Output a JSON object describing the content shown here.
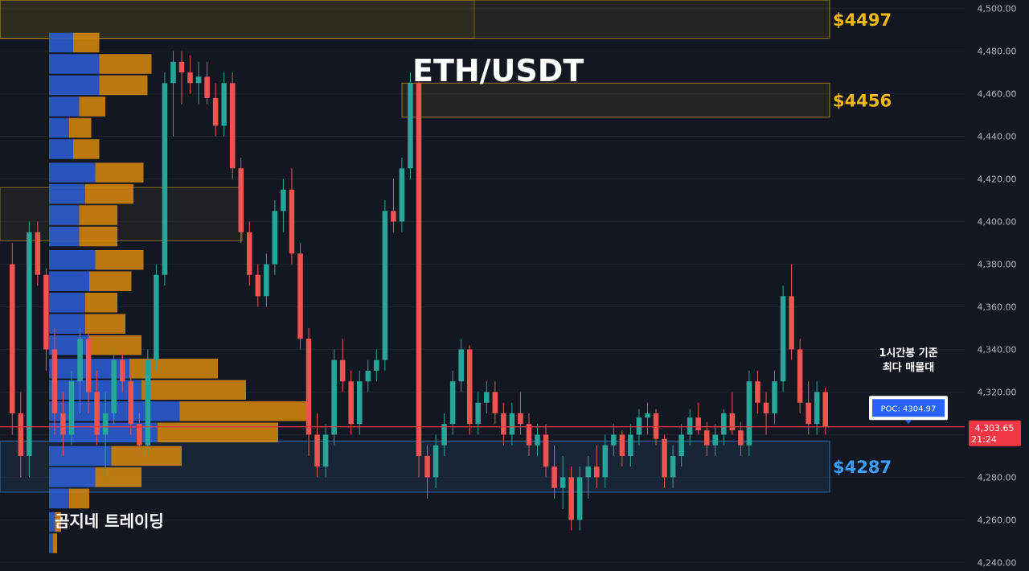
{
  "chart_data": {
    "type": "candlestick",
    "title": "ETH/USDT",
    "watermark": "곰지네 트레이딩",
    "ylim": [
      4236,
      4504
    ],
    "y_ticks": [
      4500,
      4480,
      4460,
      4440,
      4420,
      4400,
      4380,
      4360,
      4340,
      4320,
      4300,
      4280,
      4260,
      4240
    ],
    "y_tick_labels": [
      "4,500.00",
      "4,480.00",
      "4,460.00",
      "4,440.00",
      "4,420.00",
      "4,400.00",
      "4,380.00",
      "4,360.00",
      "4,340.00",
      "4,320.00",
      "4,300.00",
      "4,280.00",
      "4,260.00",
      "4,240.00"
    ],
    "current_price": {
      "value": 4303.65,
      "label": "4,303.65",
      "countdown": "21:24"
    },
    "poc": {
      "value": 4304.97,
      "label": "POC: 4304.97"
    },
    "annotation": {
      "line1": "1시간봉 기준",
      "line2": "최다 매물대"
    },
    "zones": [
      {
        "label": "$4497",
        "top": 4504,
        "bottom": 4486,
        "color": "#f0b90b"
      },
      {
        "label": "$4456",
        "top": 4465,
        "bottom": 4449,
        "color": "#f0b90b"
      },
      {
        "label": "$4287",
        "top": 4297,
        "bottom": 4273,
        "color": "#3aa0ff"
      }
    ],
    "volume_profile": {
      "rows": [
        {
          "price": 4484,
          "up": 12,
          "down": 13
        },
        {
          "price": 4474,
          "up": 25,
          "down": 26
        },
        {
          "price": 4464,
          "up": 25,
          "down": 24
        },
        {
          "price": 4454,
          "up": 15,
          "down": 13
        },
        {
          "price": 4444,
          "up": 10,
          "down": 11
        },
        {
          "price": 4434,
          "up": 12,
          "down": 13
        },
        {
          "price": 4423,
          "up": 23,
          "down": 24
        },
        {
          "price": 4413,
          "up": 18,
          "down": 24
        },
        {
          "price": 4403,
          "up": 15,
          "down": 19
        },
        {
          "price": 4393,
          "up": 15,
          "down": 19
        },
        {
          "price": 4382,
          "up": 23,
          "down": 24
        },
        {
          "price": 4372,
          "up": 20,
          "down": 21
        },
        {
          "price": 4362,
          "up": 18,
          "down": 16
        },
        {
          "price": 4352,
          "up": 18,
          "down": 20
        },
        {
          "price": 4342,
          "up": 20,
          "down": 26
        },
        {
          "price": 4331,
          "up": 40,
          "down": 44
        },
        {
          "price": 4321,
          "up": 46,
          "down": 52
        },
        {
          "price": 4311,
          "up": 65,
          "down": 64
        },
        {
          "price": 4301,
          "up": 54,
          "down": 60
        },
        {
          "price": 4290,
          "up": 31,
          "down": 35
        },
        {
          "price": 4280,
          "up": 23,
          "down": 23
        },
        {
          "price": 4270,
          "up": 10,
          "down": 10
        },
        {
          "price": 4259,
          "up": 3,
          "down": 3
        },
        {
          "price": 4249,
          "up": 2,
          "down": 2
        }
      ]
    },
    "candles": [
      [
        4380,
        4390,
        4300,
        4310
      ],
      [
        4310,
        4320,
        4280,
        4290
      ],
      [
        4290,
        4400,
        4280,
        4395
      ],
      [
        4395,
        4400,
        4370,
        4375
      ],
      [
        4375,
        4378,
        4330,
        4340
      ],
      [
        4340,
        4350,
        4300,
        4310
      ],
      [
        4310,
        4320,
        4290,
        4300
      ],
      [
        4300,
        4330,
        4295,
        4325
      ],
      [
        4325,
        4350,
        4310,
        4345
      ],
      [
        4345,
        4348,
        4310,
        4320
      ],
      [
        4320,
        4330,
        4295,
        4300
      ],
      [
        4300,
        4320,
        4280,
        4310
      ],
      [
        4310,
        4340,
        4305,
        4335
      ],
      [
        4335,
        4340,
        4320,
        4325
      ],
      [
        4325,
        4330,
        4300,
        4305
      ],
      [
        4305,
        4310,
        4290,
        4295
      ],
      [
        4295,
        4340,
        4290,
        4335
      ],
      [
        4335,
        4380,
        4330,
        4375
      ],
      [
        4375,
        4470,
        4370,
        4465
      ],
      [
        4465,
        4480,
        4440,
        4475
      ],
      [
        4475,
        4480,
        4455,
        4470
      ],
      [
        4470,
        4478,
        4460,
        4465
      ],
      [
        4465,
        4475,
        4455,
        4468
      ],
      [
        4468,
        4475,
        4455,
        4458
      ],
      [
        4458,
        4465,
        4440,
        4445
      ],
      [
        4445,
        4470,
        4440,
        4465
      ],
      [
        4465,
        4470,
        4420,
        4425
      ],
      [
        4425,
        4430,
        4390,
        4395
      ],
      [
        4395,
        4400,
        4370,
        4375
      ],
      [
        4375,
        4380,
        4360,
        4365
      ],
      [
        4365,
        4385,
        4360,
        4380
      ],
      [
        4380,
        4410,
        4375,
        4405
      ],
      [
        4405,
        4420,
        4395,
        4415
      ],
      [
        4415,
        4425,
        4380,
        4385
      ],
      [
        4385,
        4390,
        4340,
        4345
      ],
      [
        4345,
        4350,
        4290,
        4300
      ],
      [
        4300,
        4310,
        4280,
        4285
      ],
      [
        4285,
        4305,
        4280,
        4300
      ],
      [
        4300,
        4340,
        4295,
        4335
      ],
      [
        4335,
        4345,
        4320,
        4325
      ],
      [
        4325,
        4330,
        4300,
        4305
      ],
      [
        4305,
        4330,
        4300,
        4325
      ],
      [
        4325,
        4335,
        4320,
        4330
      ],
      [
        4330,
        4340,
        4325,
        4335
      ],
      [
        4335,
        4410,
        4330,
        4405
      ],
      [
        4405,
        4420,
        4395,
        4400
      ],
      [
        4400,
        4430,
        4395,
        4425
      ],
      [
        4425,
        4470,
        4420,
        4465
      ],
      [
        4465,
        4475,
        4280,
        4290
      ],
      [
        4290,
        4295,
        4270,
        4280
      ],
      [
        4280,
        4300,
        4275,
        4295
      ],
      [
        4295,
        4310,
        4290,
        4305
      ],
      [
        4305,
        4330,
        4300,
        4325
      ],
      [
        4325,
        4345,
        4320,
        4340
      ],
      [
        4340,
        4342,
        4300,
        4305
      ],
      [
        4305,
        4320,
        4300,
        4315
      ],
      [
        4315,
        4325,
        4310,
        4320
      ],
      [
        4320,
        4325,
        4305,
        4310
      ],
      [
        4310,
        4315,
        4295,
        4300
      ],
      [
        4300,
        4315,
        4295,
        4310
      ],
      [
        4310,
        4320,
        4300,
        4305
      ],
      [
        4305,
        4310,
        4290,
        4295
      ],
      [
        4295,
        4305,
        4290,
        4300
      ],
      [
        4300,
        4305,
        4280,
        4285
      ],
      [
        4285,
        4295,
        4270,
        4275
      ],
      [
        4275,
        4290,
        4265,
        4280
      ],
      [
        4280,
        4285,
        4255,
        4260
      ],
      [
        4260,
        4285,
        4255,
        4280
      ],
      [
        4280,
        4290,
        4270,
        4285
      ],
      [
        4285,
        4295,
        4275,
        4280
      ],
      [
        4280,
        4300,
        4275,
        4295
      ],
      [
        4295,
        4305,
        4290,
        4300
      ],
      [
        4300,
        4302,
        4285,
        4290
      ],
      [
        4290,
        4305,
        4285,
        4300
      ],
      [
        4300,
        4312,
        4295,
        4308
      ],
      [
        4308,
        4315,
        4300,
        4310
      ],
      [
        4310,
        4312,
        4295,
        4298
      ],
      [
        4298,
        4300,
        4275,
        4280
      ],
      [
        4280,
        4295,
        4275,
        4290
      ],
      [
        4290,
        4305,
        4285,
        4300
      ],
      [
        4300,
        4312,
        4295,
        4308
      ],
      [
        4308,
        4315,
        4300,
        4302
      ],
      [
        4302,
        4306,
        4290,
        4295
      ],
      [
        4295,
        4305,
        4290,
        4300
      ],
      [
        4300,
        4312,
        4295,
        4310
      ],
      [
        4310,
        4320,
        4300,
        4302
      ],
      [
        4302,
        4306,
        4290,
        4295
      ],
      [
        4295,
        4330,
        4290,
        4325
      ],
      [
        4325,
        4330,
        4310,
        4315
      ],
      [
        4315,
        4320,
        4300,
        4310
      ],
      [
        4310,
        4330,
        4305,
        4325
      ],
      [
        4325,
        4370,
        4320,
        4365
      ],
      [
        4365,
        4380,
        4335,
        4340
      ],
      [
        4340,
        4345,
        4310,
        4315
      ],
      [
        4315,
        4325,
        4300,
        4305
      ],
      [
        4305,
        4325,
        4300,
        4320
      ],
      [
        4320,
        4322,
        4300,
        4303.65
      ]
    ]
  }
}
